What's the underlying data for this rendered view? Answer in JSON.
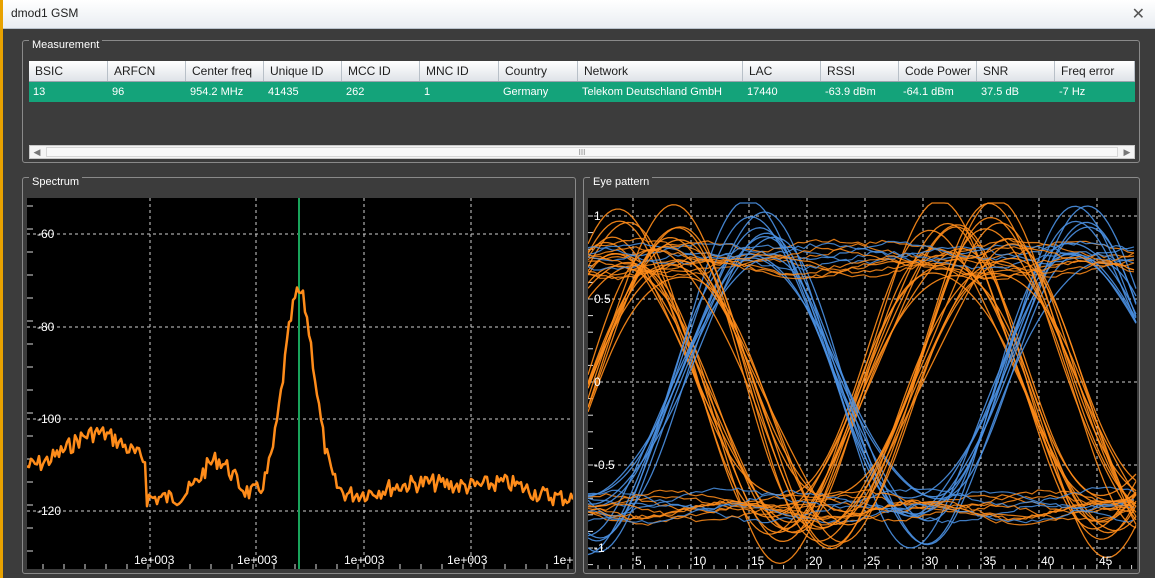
{
  "window": {
    "title": "dmod1 GSM",
    "close_glyph": "✕"
  },
  "measurement": {
    "label": "Measurement",
    "columns": [
      "BSIC",
      "ARFCN",
      "Center freq",
      "Unique ID",
      "MCC ID",
      "MNC ID",
      "Country",
      "Network",
      "LAC",
      "RSSI",
      "Code Power",
      "SNR",
      "Freq error"
    ],
    "rows": [
      [
        "13",
        "96",
        "954.2 MHz",
        "41435",
        "262",
        "1",
        "Germany",
        "Telekom Deutschland GmbH",
        "17440",
        "-63.9 dBm",
        "-64.1 dBm",
        "37.5 dB",
        "-7 Hz"
      ]
    ],
    "selected_row_color": "#14a37a",
    "scroll": {
      "left_glyph": "◀",
      "right_glyph": "▶",
      "grip_glyph": "III"
    }
  },
  "spectrum": {
    "label": "Spectrum",
    "y_ticks": [
      "-60",
      "-80",
      "-100",
      "-120"
    ],
    "x_ticks": [
      "1e+003",
      "1e+003",
      "1e+003",
      "1e+003",
      "1e+"
    ],
    "trace_color": "#ff8c1a",
    "marker_color": "#19a35a"
  },
  "eye": {
    "label": "Eye pattern",
    "y_ticks": [
      "1",
      "0.5",
      "0",
      "-0.5",
      "-1"
    ],
    "x_ticks": [
      "5",
      "10",
      "15",
      "20",
      "25",
      "30",
      "35",
      "40",
      "45"
    ],
    "colors": [
      "#ff8c1a",
      "#4a90e2"
    ]
  }
}
